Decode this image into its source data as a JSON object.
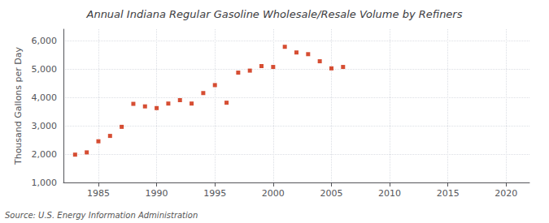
{
  "chart_data": {
    "type": "scatter",
    "title": "Annual Indiana Regular Gasoline Wholesale/Resale Volume by Refiners",
    "ylabel": "Thousand Gallons per Day",
    "annotation": "Source: U.S. Energy Information Administration",
    "x": [
      1983,
      1984,
      1985,
      1986,
      1987,
      1988,
      1989,
      1990,
      1991,
      1992,
      1993,
      1994,
      1995,
      1996,
      1997,
      1998,
      1999,
      2000,
      2001,
      2002,
      2003,
      2004,
      2005,
      2006
    ],
    "values": [
      1980,
      2060,
      2450,
      2640,
      2960,
      3770,
      3680,
      3620,
      3780,
      3900,
      3780,
      4150,
      4430,
      3810,
      4870,
      4940,
      5100,
      5070,
      5780,
      5580,
      5520,
      5270,
      5020,
      5070
    ],
    "color": "#cc2200",
    "marker": "square",
    "xlim": [
      1982,
      2022
    ],
    "xticks": [
      1985,
      1990,
      1995,
      2000,
      2005,
      2010,
      2015,
      2020
    ],
    "ylim": [
      1000,
      6400
    ],
    "yticks": [
      {
        "value": 1000,
        "label": "1,000"
      },
      {
        "value": 2000,
        "label": "2,000"
      },
      {
        "value": 3000,
        "label": "3,000"
      },
      {
        "value": 4000,
        "label": "4,000"
      },
      {
        "value": 5000,
        "label": "5,000"
      },
      {
        "value": 6000,
        "label": "6,000"
      }
    ],
    "grid": true
  }
}
